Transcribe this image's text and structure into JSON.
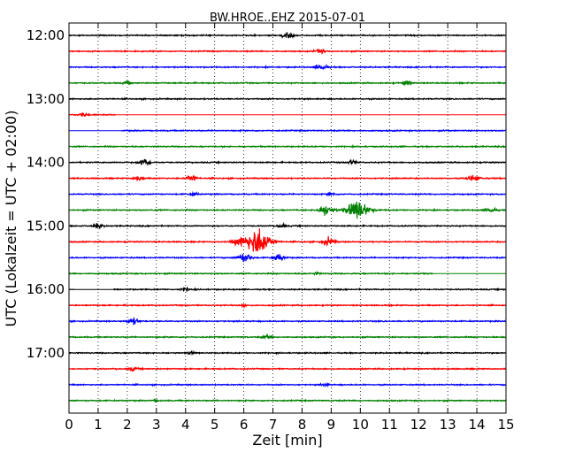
{
  "chart_data": {
    "type": "line",
    "title": "BW.HROE..EHZ 2015-07-01",
    "xlabel": "Zeit  [min]",
    "ylabel": "UTC (Lokalzeit = UTC + 02:00)",
    "xlim": [
      0,
      15
    ],
    "x_ticks": [
      "0",
      "1",
      "2",
      "3",
      "4",
      "5",
      "6",
      "7",
      "8",
      "9",
      "10",
      "11",
      "12",
      "13",
      "14",
      "15"
    ],
    "y_tick_labels": [
      "12:00",
      "13:00",
      "14:00",
      "15:00",
      "16:00",
      "17:00"
    ],
    "grid": "vertical dotted at every minute",
    "colors": [
      "#000000",
      "#ff0000",
      "#0000ff",
      "#008000"
    ],
    "traces": [
      {
        "start": "12:00",
        "events": [
          {
            "t": 7.5,
            "amp": 0.55
          }
        ]
      },
      {
        "start": "12:15",
        "events": [
          {
            "t": 8.6,
            "amp": 0.35
          }
        ]
      },
      {
        "start": "12:30",
        "events": [
          {
            "t": 8.7,
            "amp": 0.5
          }
        ]
      },
      {
        "start": "12:45",
        "events": [
          {
            "t": 2.0,
            "amp": 0.25
          },
          {
            "t": 11.6,
            "amp": 0.35
          }
        ]
      },
      {
        "start": "13:00",
        "events": []
      },
      {
        "start": "13:15",
        "data_end_min": 1.6,
        "events": [
          {
            "t": 0.5,
            "amp": 0.3
          }
        ]
      },
      {
        "start": "13:30",
        "data_start_min": 1.8,
        "events": []
      },
      {
        "start": "13:45",
        "events": []
      },
      {
        "start": "14:00",
        "events": [
          {
            "t": 2.6,
            "amp": 0.6
          },
          {
            "t": 9.7,
            "amp": 0.3
          }
        ]
      },
      {
        "start": "14:15",
        "events": [
          {
            "t": 2.4,
            "amp": 0.4
          },
          {
            "t": 4.2,
            "amp": 0.5
          },
          {
            "t": 13.9,
            "amp": 0.55
          }
        ]
      },
      {
        "start": "14:30",
        "events": [
          {
            "t": 4.3,
            "amp": 0.3
          },
          {
            "t": 9.0,
            "amp": 0.25
          }
        ]
      },
      {
        "start": "14:45",
        "events": [
          {
            "t": 8.8,
            "amp": 0.9
          },
          {
            "t": 9.9,
            "amp": 1.6
          },
          {
            "t": 14.5,
            "amp": 0.45
          }
        ]
      },
      {
        "start": "15:00",
        "events": [
          {
            "t": 1.0,
            "amp": 0.4
          },
          {
            "t": 7.3,
            "amp": 0.3
          }
        ]
      },
      {
        "start": "15:15",
        "events": [
          {
            "t": 5.9,
            "amp": 0.8
          },
          {
            "t": 6.4,
            "amp": 1.2
          },
          {
            "t": 6.6,
            "amp": 1.5
          },
          {
            "t": 8.9,
            "amp": 0.65
          }
        ]
      },
      {
        "start": "15:30",
        "events": [
          {
            "t": 6.0,
            "amp": 0.8
          },
          {
            "t": 7.2,
            "amp": 0.6
          }
        ]
      },
      {
        "start": "15:45",
        "data_end_min": 12.5,
        "events": [
          {
            "t": 8.5,
            "amp": 0.2
          }
        ]
      },
      {
        "start": "16:00",
        "data_start_min": 1.5,
        "events": [
          {
            "t": 4.0,
            "amp": 0.25
          }
        ]
      },
      {
        "start": "16:15",
        "events": [
          {
            "t": 6.0,
            "amp": 0.2
          }
        ]
      },
      {
        "start": "16:30",
        "events": [
          {
            "t": 2.2,
            "amp": 0.55
          }
        ]
      },
      {
        "start": "16:45",
        "events": [
          {
            "t": 6.8,
            "amp": 0.35
          }
        ]
      },
      {
        "start": "17:00",
        "events": [
          {
            "t": 4.2,
            "amp": 0.2
          }
        ]
      },
      {
        "start": "17:15",
        "events": [
          {
            "t": 2.2,
            "amp": 0.3
          }
        ]
      },
      {
        "start": "17:30",
        "events": [
          {
            "t": 8.8,
            "amp": 0.2
          }
        ]
      },
      {
        "start": "17:45",
        "events": [
          {
            "t": 3.0,
            "amp": 0.15
          }
        ]
      }
    ]
  }
}
